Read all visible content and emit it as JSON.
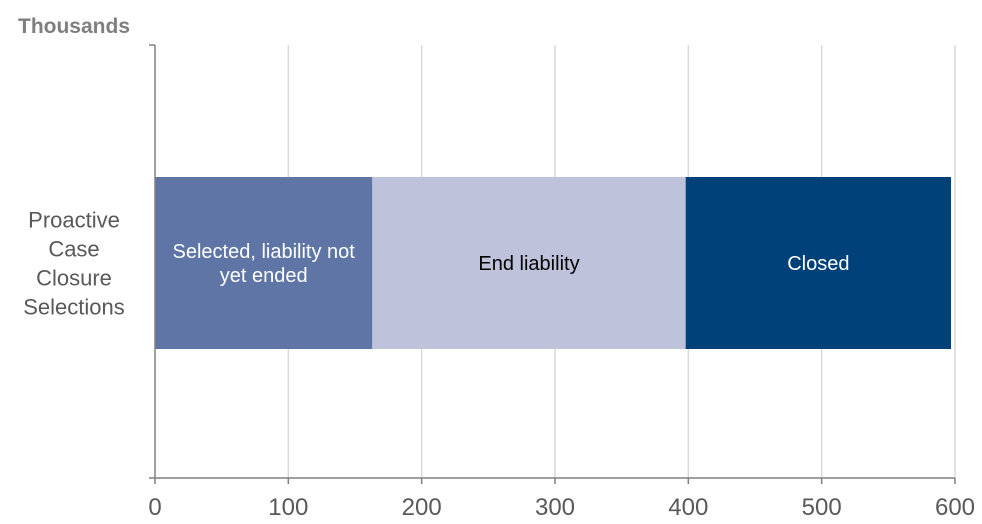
{
  "chart_data": {
    "type": "bar",
    "orientation": "horizontal",
    "stacked": true,
    "unit_label": "Thousands",
    "categories": [
      [
        "Proactive",
        "Case",
        "Closure",
        "Selections"
      ]
    ],
    "series": [
      {
        "name": "Selected, liability not yet ended",
        "label_lines": [
          "Selected, liability not",
          "yet ended"
        ],
        "values": [
          163
        ],
        "color": "#5e75a6",
        "label_color": "#ffffff"
      },
      {
        "name": "End liability",
        "label_lines": [
          "End liability"
        ],
        "values": [
          235
        ],
        "color": "#bec2da",
        "label_color": "#000000"
      },
      {
        "name": "Closed",
        "label_lines": [
          "Closed"
        ],
        "values": [
          199
        ],
        "color": "#00417a",
        "label_color": "#ffffff"
      }
    ],
    "xlim": [
      0,
      600
    ],
    "xticks": [
      0,
      100,
      200,
      300,
      400,
      500,
      600
    ],
    "grid": true,
    "legend": "none"
  }
}
